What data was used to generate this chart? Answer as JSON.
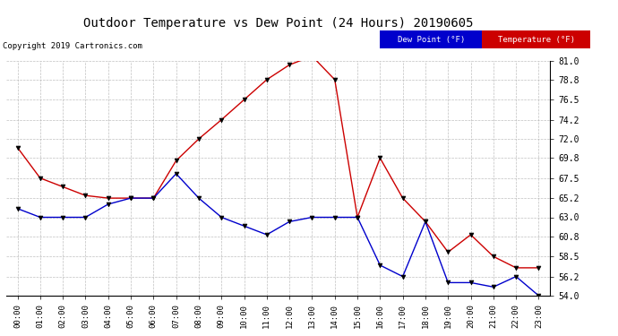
{
  "title": "Outdoor Temperature vs Dew Point (24 Hours) 20190605",
  "copyright": "Copyright 2019 Cartronics.com",
  "hours": [
    "00:00",
    "01:00",
    "02:00",
    "03:00",
    "04:00",
    "05:00",
    "06:00",
    "07:00",
    "08:00",
    "09:00",
    "10:00",
    "11:00",
    "12:00",
    "13:00",
    "14:00",
    "15:00",
    "16:00",
    "17:00",
    "18:00",
    "19:00",
    "20:00",
    "21:00",
    "22:00",
    "23:00"
  ],
  "temperature": [
    71.0,
    67.5,
    66.5,
    65.5,
    65.2,
    65.2,
    65.2,
    69.5,
    72.0,
    74.2,
    76.5,
    78.8,
    80.5,
    81.5,
    78.8,
    63.0,
    69.8,
    65.2,
    62.5,
    59.0,
    61.0,
    58.5,
    57.2,
    57.2
  ],
  "dew_point": [
    64.0,
    63.0,
    63.0,
    63.0,
    64.5,
    65.2,
    65.2,
    68.0,
    65.2,
    63.0,
    62.0,
    61.0,
    62.5,
    63.0,
    63.0,
    63.0,
    57.5,
    56.2,
    62.5,
    55.5,
    55.5,
    55.0,
    56.2,
    54.0
  ],
  "temp_color": "#cc0000",
  "dew_color": "#0000cc",
  "marker_color": "#000000",
  "ylim_min": 54.0,
  "ylim_max": 81.0,
  "yticks": [
    54.0,
    56.2,
    58.5,
    60.8,
    63.0,
    65.2,
    67.5,
    69.8,
    72.0,
    74.2,
    76.5,
    78.8,
    81.0
  ],
  "bg_color": "#ffffff",
  "grid_color": "#b0b0b0",
  "legend_temp_bg": "#cc0000",
  "legend_dew_bg": "#0000cc",
  "legend_temp_label": "Temperature (°F)",
  "legend_dew_label": "Dew Point (°F)"
}
